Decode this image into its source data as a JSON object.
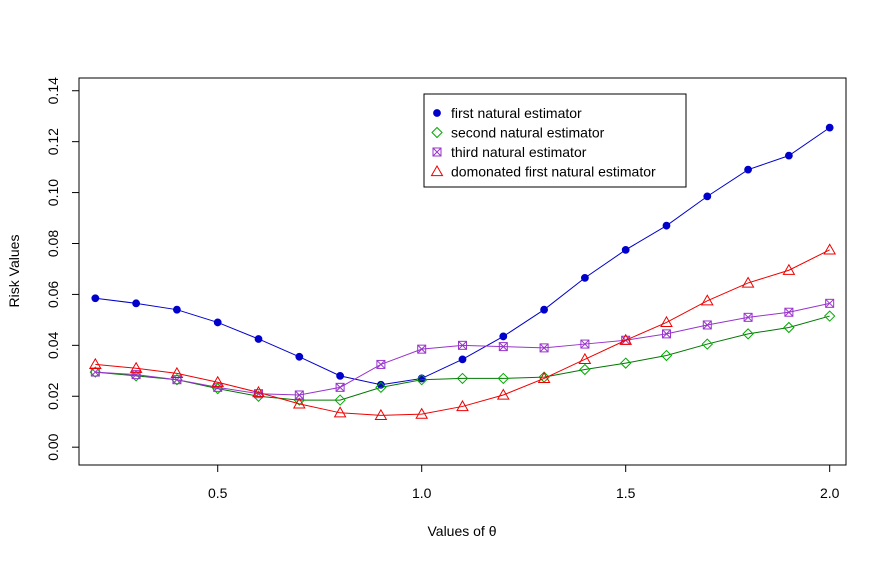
{
  "chart_data": {
    "type": "line",
    "xlabel": "Values of θ",
    "ylabel": "Risk Values",
    "xlim": [
      0.16,
      2.04
    ],
    "ylim": [
      -0.007,
      0.145
    ],
    "xticks": [
      0.5,
      1.0,
      1.5,
      2.0
    ],
    "xtick_labels": [
      "0.5",
      "1.0",
      "1.5",
      "2.0"
    ],
    "yticks": [
      0.0,
      0.02,
      0.04,
      0.06,
      0.08,
      0.1,
      0.12,
      0.14
    ],
    "ytick_labels": [
      "0.00",
      "0.02",
      "0.04",
      "0.06",
      "0.08",
      "0.10",
      "0.12",
      "0.14"
    ],
    "grid": false,
    "legend_position": "top-right",
    "x": [
      0.2,
      0.3,
      0.4,
      0.5,
      0.6,
      0.7,
      0.8,
      0.9,
      1.0,
      1.1,
      1.2,
      1.3,
      1.4,
      1.5,
      1.6,
      1.7,
      1.8,
      1.9,
      2.0
    ],
    "series": [
      {
        "name": "first natural estimator",
        "color": "#0000cc",
        "marker": "filled-circle",
        "values": [
          0.0585,
          0.0565,
          0.054,
          0.049,
          0.0425,
          0.0355,
          0.028,
          0.0245,
          0.027,
          0.0345,
          0.0435,
          0.054,
          0.0665,
          0.0775,
          0.087,
          0.0985,
          0.109,
          0.1145,
          0.1255
        ]
      },
      {
        "name": "second natural estimator",
        "color": "#00aa00",
        "line_color": "#007700",
        "marker": "diamond",
        "values": [
          0.0295,
          0.028,
          0.0265,
          0.023,
          0.02,
          0.0185,
          0.0185,
          0.0235,
          0.0265,
          0.027,
          0.027,
          0.0275,
          0.0305,
          0.033,
          0.036,
          0.0405,
          0.0445,
          0.047,
          0.0515
        ]
      },
      {
        "name": "third natural estimator",
        "color": "#9933cc",
        "marker": "boxed-x",
        "values": [
          0.0295,
          0.0285,
          0.0265,
          0.0235,
          0.021,
          0.0205,
          0.0235,
          0.0325,
          0.0385,
          0.04,
          0.0395,
          0.039,
          0.0405,
          0.042,
          0.0445,
          0.048,
          0.051,
          0.053,
          0.0565
        ]
      },
      {
        "name": "domonated first natural estimator",
        "color": "#ee0000",
        "marker": "triangle",
        "values": [
          0.0325,
          0.031,
          0.029,
          0.0255,
          0.0215,
          0.017,
          0.0135,
          0.0125,
          0.013,
          0.016,
          0.0205,
          0.027,
          0.0345,
          0.042,
          0.049,
          0.0575,
          0.0645,
          0.0695,
          0.0775
        ]
      }
    ]
  }
}
